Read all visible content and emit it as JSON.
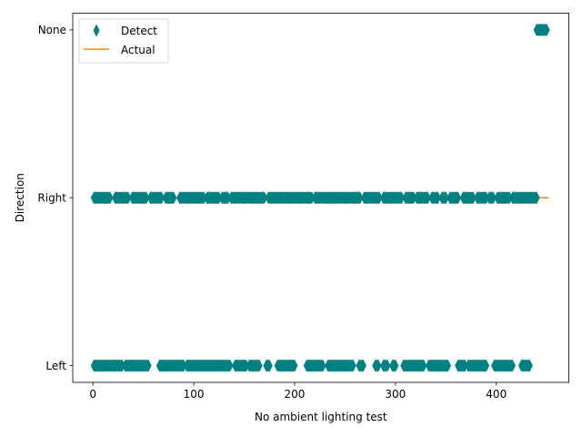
{
  "chart_data": {
    "type": "scatter",
    "title": "",
    "xlabel": "No ambient lighting test",
    "ylabel": "Direction",
    "xlim": [
      -20,
      472
    ],
    "x_ticks": [
      0,
      100,
      200,
      300,
      400
    ],
    "y_categories": [
      "Left",
      "Right",
      "None"
    ],
    "grid": false,
    "legend_position": "top-left",
    "series": [
      {
        "name": "Detect",
        "kind": "scatter",
        "marker": "thin_diamond",
        "color": "#008080",
        "points_by_category": {
          "Left": [
            [
              1,
              29
            ],
            [
              32,
              55
            ],
            [
              66,
              90
            ],
            [
              93,
              136
            ],
            [
              141,
              152
            ],
            [
              155,
              165
            ],
            [
              172,
              175
            ],
            [
              183,
              200
            ],
            [
              212,
              228
            ],
            [
              233,
              258
            ],
            [
              264,
              268
            ],
            [
              280,
              283
            ],
            [
              288,
              292
            ],
            [
              297,
              300
            ],
            [
              308,
              328
            ],
            [
              333,
              352
            ],
            [
              362,
              369
            ],
            [
              372,
              390
            ],
            [
              398,
              416
            ],
            [
              425,
              433
            ]
          ],
          "Right": [
            [
              1,
              17
            ],
            [
              22,
              35
            ],
            [
              39,
              53
            ],
            [
              57,
              68
            ],
            [
              72,
              80
            ],
            [
              86,
              110
            ],
            [
              113,
              125
            ],
            [
              128,
              134
            ],
            [
              137,
              170
            ],
            [
              174,
              217
            ],
            [
              220,
              265
            ],
            [
              269,
              284
            ],
            [
              288,
              306
            ],
            [
              310,
              318
            ],
            [
              321,
              332
            ],
            [
              336,
              342
            ],
            [
              346,
              350
            ],
            [
              354,
              362
            ],
            [
              367,
              377
            ],
            [
              381,
              390
            ],
            [
              393,
              397
            ],
            [
              401,
              413
            ],
            [
              416,
              440
            ]
          ],
          "None": [
            [
              440,
              450
            ]
          ]
        }
      },
      {
        "name": "Actual",
        "kind": "line",
        "color": "#ff8c00",
        "x": [
          0,
          452
        ],
        "y": [
          "Right",
          "Right"
        ]
      }
    ]
  }
}
